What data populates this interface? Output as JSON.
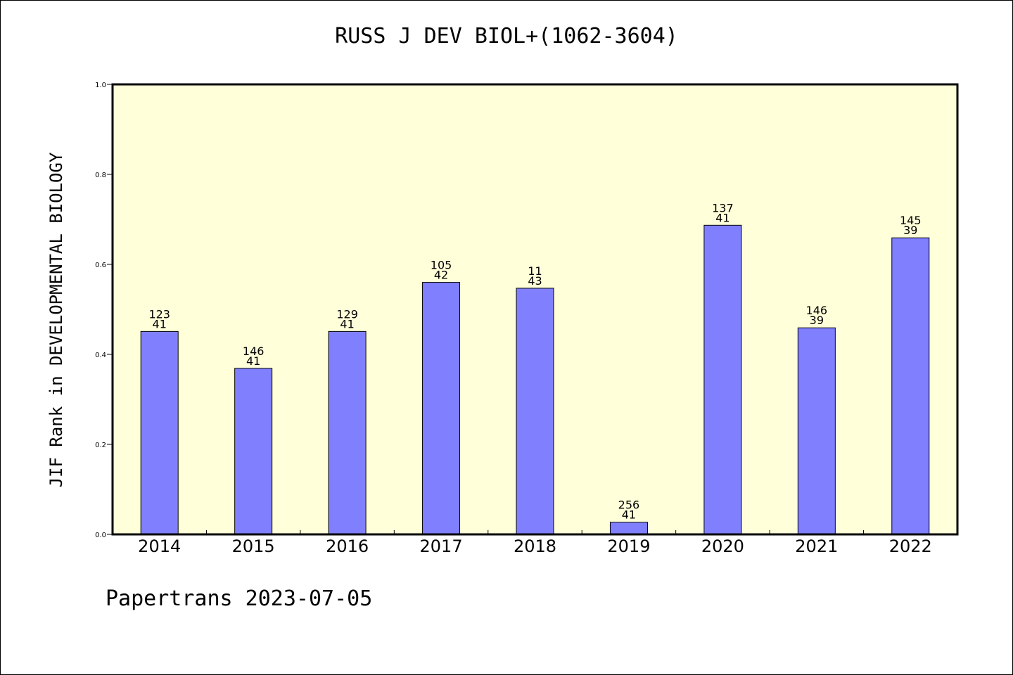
{
  "chart_data": {
    "type": "bar",
    "title": "RUSS J DEV BIOL+(1062-3604)",
    "ylabel": "JIF Rank in DEVELOPMENTAL BIOLOGY",
    "xlabel": "",
    "categories": [
      "2014",
      "2015",
      "2016",
      "2017",
      "2018",
      "2019",
      "2020",
      "2021",
      "2022"
    ],
    "values": [
      0.451,
      0.369,
      0.451,
      0.56,
      0.547,
      0.027,
      0.687,
      0.459,
      0.659
    ],
    "data_labels": [
      [
        "123",
        "41"
      ],
      [
        "146",
        "41"
      ],
      [
        "129",
        "41"
      ],
      [
        "105",
        "42"
      ],
      [
        "11",
        "43"
      ],
      [
        "256",
        "41"
      ],
      [
        "137",
        "41"
      ],
      [
        "146",
        "39"
      ],
      [
        "145",
        "39"
      ]
    ],
    "ylim": [
      0,
      1
    ],
    "y_ticks": [
      "0.0",
      "0.2",
      "0.4",
      "0.6",
      "0.8",
      "1.0"
    ],
    "grid": false,
    "colors": {
      "bar": "#8080ff",
      "plot_background": "#ffffd9",
      "axis": "#000000"
    }
  },
  "footer": "Papertrans 2023-07-05"
}
